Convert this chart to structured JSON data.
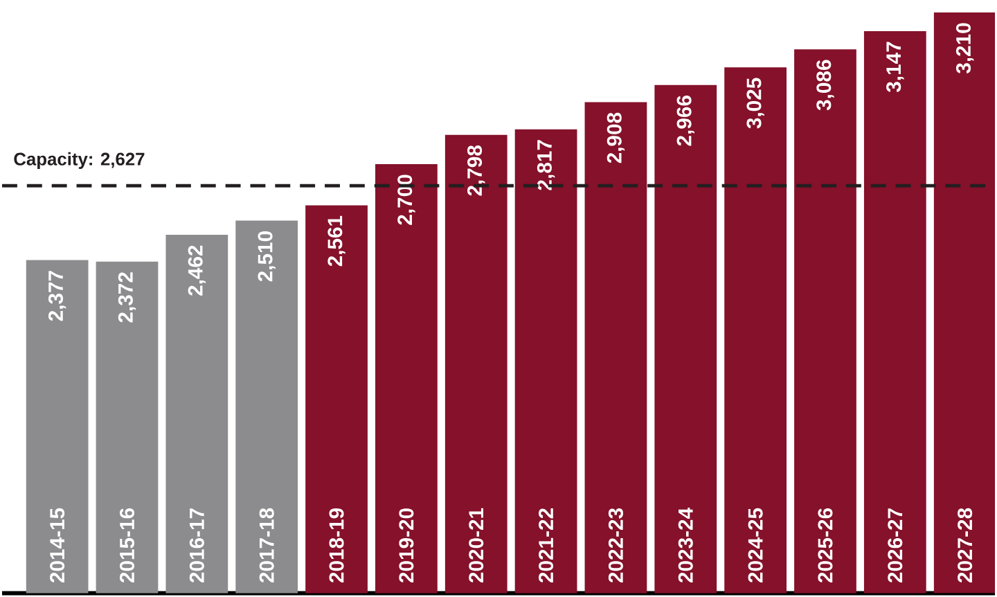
{
  "chart_data": {
    "type": "bar",
    "categories": [
      "2014-15",
      "2015-16",
      "2016-17",
      "2017-18",
      "2018-19",
      "2019-20",
      "2020-21",
      "2021-22",
      "2022-23",
      "2023-24",
      "2024-25",
      "2025-26",
      "2026-27",
      "2027-28"
    ],
    "values": [
      2377,
      2372,
      2462,
      2510,
      2561,
      2700,
      2798,
      2817,
      2908,
      2966,
      3025,
      3086,
      3147,
      3210
    ],
    "value_labels": [
      "2,377",
      "2,372",
      "2,462",
      "2,510",
      "2,561",
      "2,700",
      "2,798",
      "2,817",
      "2,908",
      "2,966",
      "3,025",
      "3,086",
      "3,147",
      "3,210"
    ],
    "colors": [
      "#8c8c8e",
      "#8c8c8e",
      "#8c8c8e",
      "#8c8c8e",
      "#85112a",
      "#85112a",
      "#85112a",
      "#85112a",
      "#85112a",
      "#85112a",
      "#85112a",
      "#85112a",
      "#85112a",
      "#85112a"
    ],
    "ylim": [
      1257,
      3210
    ],
    "ref_lines": [
      {
        "axis": "y",
        "value": 2627,
        "label": "Capacity: 2,627",
        "color": "#231f20",
        "line_style": "dashed"
      }
    ]
  }
}
